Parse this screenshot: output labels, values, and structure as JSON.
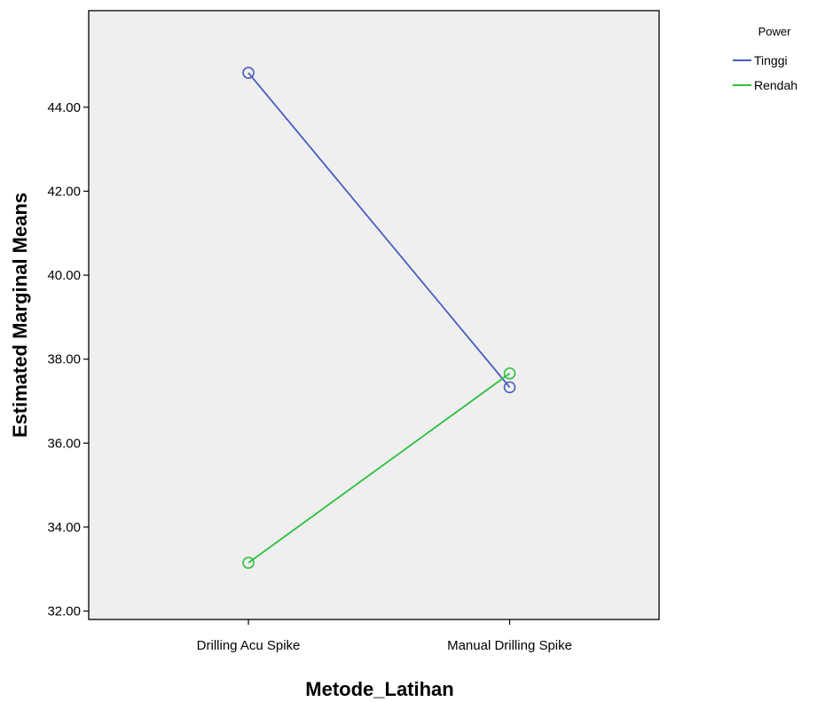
{
  "chart_data": {
    "type": "line",
    "title": "",
    "xlabel": "Metode_Latihan",
    "ylabel": "Estimated Marginal Means",
    "categories": [
      "Drilling Acu Spike",
      "Manual Drilling Spike"
    ],
    "ylim": [
      31.8,
      46.3
    ],
    "yticks": [
      "32.00",
      "34.00",
      "36.00",
      "38.00",
      "40.00",
      "42.00",
      "44.00"
    ],
    "grid": false,
    "legend": {
      "title": "Power",
      "position": "top-right"
    },
    "series": [
      {
        "name": "Tinggi",
        "color": "#4a5dbf",
        "values": [
          44.82,
          37.33
        ]
      },
      {
        "name": "Rendah",
        "color": "#2fbf3f",
        "values": [
          33.15,
          37.66
        ]
      }
    ],
    "plot_background": "#efefef"
  }
}
